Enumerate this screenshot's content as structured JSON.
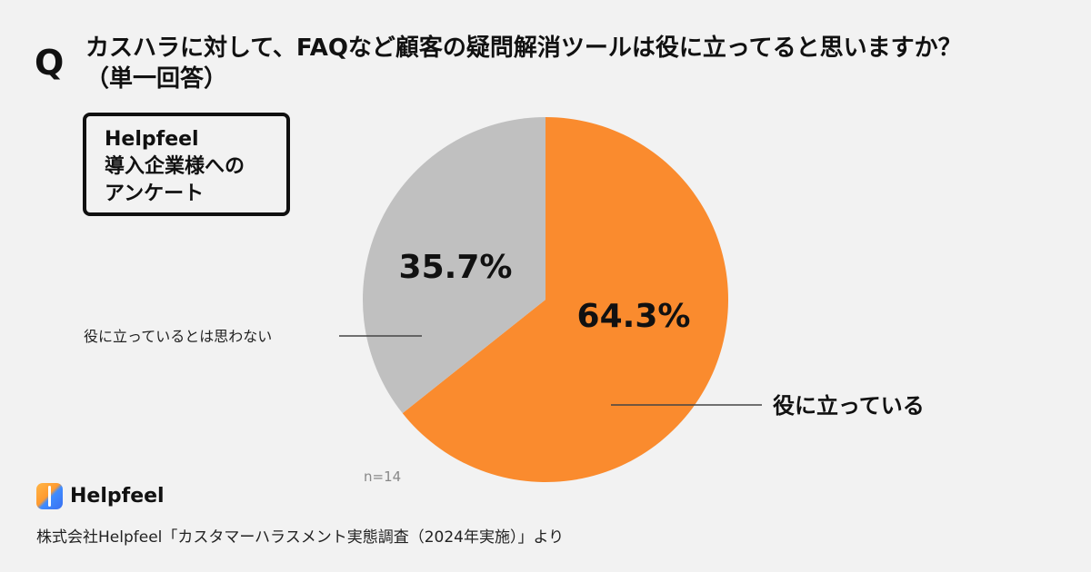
{
  "header": {
    "q_mark": "Q",
    "question_line1": "カスハラに対して、FAQなど顧客の疑問解消ツールは役に立ってると思いますか？",
    "question_line2": "（単一回答）"
  },
  "badge": {
    "lines": [
      "Helpfeel",
      "導入企業様への",
      "アンケート"
    ]
  },
  "chart_data": {
    "type": "pie",
    "title": "カスハラに対して、FAQなど顧客の疑問解消ツールは役に立ってると思いますか？（単一回答）",
    "slices": [
      {
        "label": "役に立っている",
        "value": 64.3,
        "value_label": "64.3%",
        "color": "#fa8b2e"
      },
      {
        "label": "役に立っているとは思わない",
        "value": 35.7,
        "value_label": "35.7%",
        "color": "#c0c0c0"
      }
    ],
    "n_label": "n=14"
  },
  "footer": {
    "logo_text": "Helpfeel",
    "source": "株式会社Helpfeel「カスタマーハラスメント実態調査（2024年実施）」より"
  }
}
